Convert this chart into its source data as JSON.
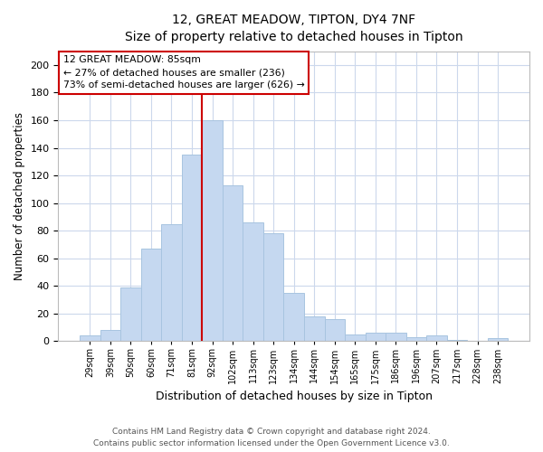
{
  "title": "12, GREAT MEADOW, TIPTON, DY4 7NF",
  "subtitle": "Size of property relative to detached houses in Tipton",
  "xlabel": "Distribution of detached houses by size in Tipton",
  "ylabel": "Number of detached properties",
  "categories": [
    "29sqm",
    "39sqm",
    "50sqm",
    "60sqm",
    "71sqm",
    "81sqm",
    "92sqm",
    "102sqm",
    "113sqm",
    "123sqm",
    "134sqm",
    "144sqm",
    "154sqm",
    "165sqm",
    "175sqm",
    "186sqm",
    "196sqm",
    "207sqm",
    "217sqm",
    "228sqm",
    "238sqm"
  ],
  "values": [
    4,
    8,
    39,
    67,
    85,
    135,
    160,
    113,
    86,
    78,
    35,
    18,
    16,
    5,
    6,
    6,
    3,
    4,
    1,
    0,
    2
  ],
  "bar_color": "#c5d8f0",
  "bar_edge_color": "#a8c4e0",
  "vline_color": "#cc0000",
  "vline_x_index": 5.5,
  "annotation_line1": "12 GREAT MEADOW: 85sqm",
  "annotation_line2": "← 27% of detached houses are smaller (236)",
  "annotation_line3": "73% of semi-detached houses are larger (626) →",
  "annotation_box_facecolor": "#ffffff",
  "annotation_box_edgecolor": "#cc0000",
  "ylim": [
    0,
    210
  ],
  "yticks": [
    0,
    20,
    40,
    60,
    80,
    100,
    120,
    140,
    160,
    180,
    200
  ],
  "footer_line1": "Contains HM Land Registry data © Crown copyright and database right 2024.",
  "footer_line2": "Contains public sector information licensed under the Open Government Licence v3.0.",
  "background_color": "#ffffff",
  "grid_color": "#ccd8ec"
}
